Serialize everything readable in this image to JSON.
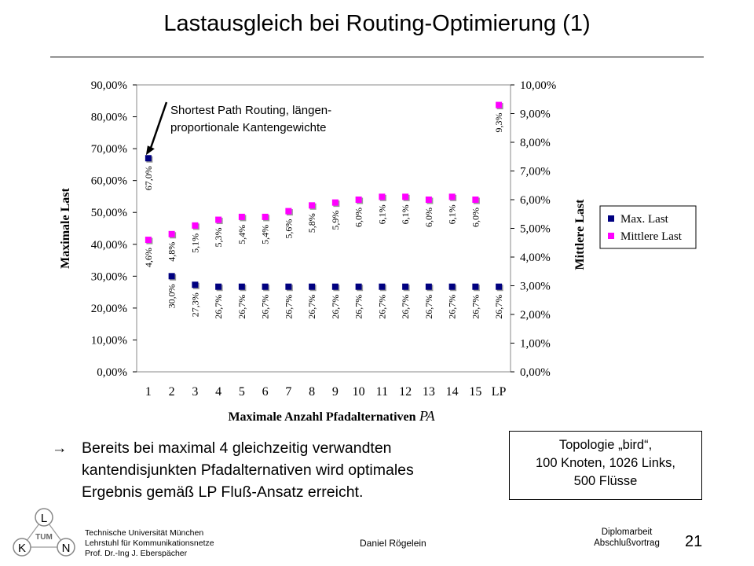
{
  "slide": {
    "title": "Lastausgleich bei Routing-Optimierung (1)",
    "page_number": "21"
  },
  "annotation": {
    "line1": "Shortest Path Routing, längen-",
    "line2": "proportionale Kantengewichte"
  },
  "bullet": {
    "arrow": "→",
    "lines": [
      "Bereits bei maximal 4 gleichzeitig verwandten",
      "kantendisjunkten Pfadalternativen wird optimales",
      "Ergebnis gemäß LP Fluß-Ansatz erreicht."
    ]
  },
  "topology_box": {
    "lines": [
      "Topologie „bird“,",
      "100 Knoten, 1026 Links,",
      "500 Flüsse"
    ]
  },
  "footer": {
    "institution": [
      "Technische Universität München",
      "Lehrstuhl für Kommunikationsnetze",
      "Prof. Dr.-Ing J. Eberspächer"
    ],
    "author": "Daniel Rögelein",
    "event": [
      "Diplomarbeit",
      "Abschlußvortrag"
    ]
  },
  "logo_letters": {
    "top": "L",
    "left": "K",
    "right": "N",
    "center": "TUM"
  },
  "colors": {
    "max_last": "#000080",
    "mittlere_last": "#ff00ff",
    "plot_bg": "#ffffff"
  },
  "chart_data": {
    "type": "scatter",
    "categories": [
      "1",
      "2",
      "3",
      "4",
      "5",
      "6",
      "7",
      "8",
      "9",
      "10",
      "11",
      "12",
      "13",
      "14",
      "15",
      "LP"
    ],
    "xlabel": "Maximale Anzahl Pfadalternativen",
    "xlabel_symbol": "PA",
    "ylabel_left": "Maximale Last",
    "ylabel_right": "Mittlere Last",
    "ylim_left": [
      0,
      90
    ],
    "ylim_right": [
      0,
      10
    ],
    "yticks_left": [
      "0,00%",
      "10,00%",
      "20,00%",
      "30,00%",
      "40,00%",
      "50,00%",
      "60,00%",
      "70,00%",
      "80,00%",
      "90,00%"
    ],
    "yticks_right": [
      "0,00%",
      "1,00%",
      "2,00%",
      "3,00%",
      "4,00%",
      "5,00%",
      "6,00%",
      "7,00%",
      "8,00%",
      "9,00%",
      "10,00%"
    ],
    "grid": false,
    "legend_position": "right",
    "series": [
      {
        "name": "Max. Last",
        "axis": "left",
        "values": [
          67.0,
          30.0,
          27.3,
          26.7,
          26.7,
          26.7,
          26.7,
          26.7,
          26.7,
          26.7,
          26.7,
          26.7,
          26.7,
          26.7,
          26.7,
          26.7
        ],
        "labels": [
          "67,0%",
          "30,0%",
          "27,3%",
          "26,7%",
          "26,7%",
          "26,7%",
          "26,7%",
          "26,7%",
          "26,7%",
          "26,7%",
          "26,7%",
          "26,7%",
          "26,7%",
          "26,7%",
          "26,7%",
          "26,7%"
        ]
      },
      {
        "name": "Mittlere Last",
        "axis": "right",
        "values": [
          4.6,
          4.8,
          5.1,
          5.3,
          5.4,
          5.4,
          5.6,
          5.8,
          5.9,
          6.0,
          6.1,
          6.1,
          6.0,
          6.1,
          6.0,
          9.3
        ],
        "labels": [
          "4,6%",
          "4,8%",
          "5,1%",
          "5,3%",
          "5,4%",
          "5,4%",
          "5,6%",
          "5,8%",
          "5,9%",
          "6,0%",
          "6,1%",
          "6,1%",
          "6,0%",
          "6,1%",
          "6,0%",
          "9,3%"
        ]
      }
    ]
  }
}
